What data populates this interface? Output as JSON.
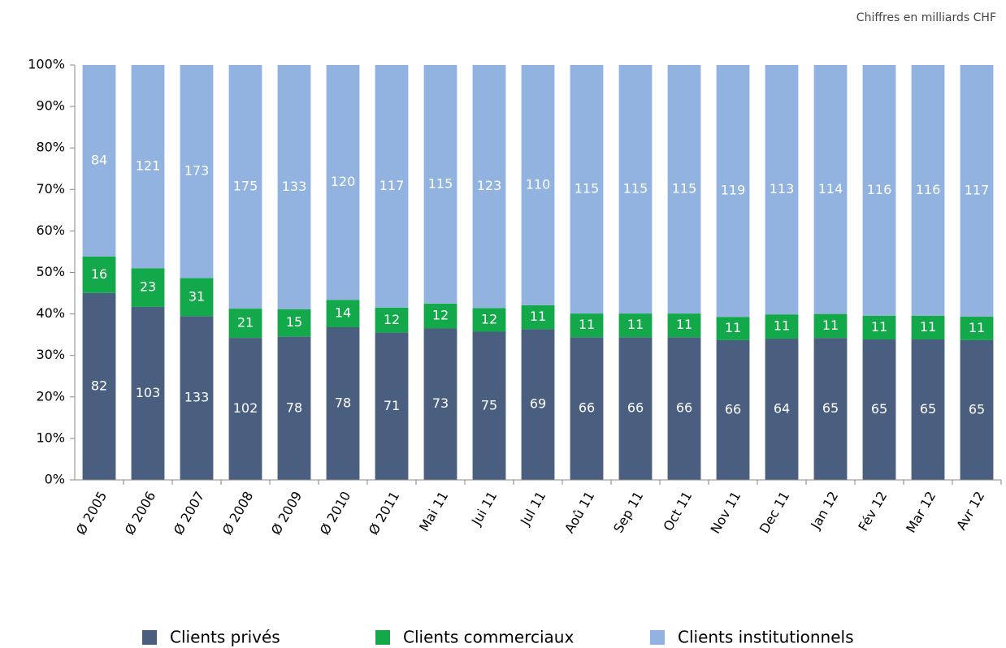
{
  "chart_data": {
    "type": "bar",
    "stacked": "percent",
    "note": "Chiffres en milliards CHF",
    "categories": [
      "Ø 2005",
      "Ø 2006",
      "Ø 2007",
      "Ø 2008",
      "Ø 2009",
      "Ø 2010",
      "Ø 2011",
      "Mai 11",
      "Jui 11",
      "Jul 11",
      "Aoû 11",
      "Sep 11",
      "Oct 11",
      "Nov 11",
      "Dec 11",
      "Jan 12",
      "Fév 12",
      "Mar 12",
      "Avr 12"
    ],
    "series": [
      {
        "name": "Clients privés",
        "color": "#4a5f80",
        "values": [
          82,
          103,
          133,
          102,
          78,
          78,
          71,
          73,
          75,
          69,
          66,
          66,
          66,
          66,
          64,
          65,
          65,
          65,
          65
        ]
      },
      {
        "name": "Clients commerciaux",
        "color": "#13a84a",
        "values": [
          16,
          23,
          31,
          21,
          15,
          14,
          12,
          12,
          12,
          11,
          11,
          11,
          11,
          11,
          11,
          11,
          11,
          11,
          11
        ]
      },
      {
        "name": "Clients institutionnels",
        "color": "#92b3e0",
        "values": [
          84,
          121,
          173,
          175,
          133,
          120,
          117,
          115,
          123,
          110,
          115,
          115,
          115,
          119,
          113,
          114,
          116,
          116,
          117
        ]
      }
    ],
    "ylim": [
      0,
      100
    ],
    "yticks": [
      {
        "value": 0,
        "label": "0%"
      },
      {
        "value": 10,
        "label": "10%"
      },
      {
        "value": 20,
        "label": "20%"
      },
      {
        "value": 30,
        "label": "30%"
      },
      {
        "value": 40,
        "label": "40%"
      },
      {
        "value": 50,
        "label": "50%"
      },
      {
        "value": 60,
        "label": "60%"
      },
      {
        "value": 70,
        "label": "70%"
      },
      {
        "value": 80,
        "label": "80%"
      },
      {
        "value": 90,
        "label": "90%"
      },
      {
        "value": 100,
        "label": "100%"
      }
    ],
    "grid": false,
    "legend": "bottom"
  }
}
